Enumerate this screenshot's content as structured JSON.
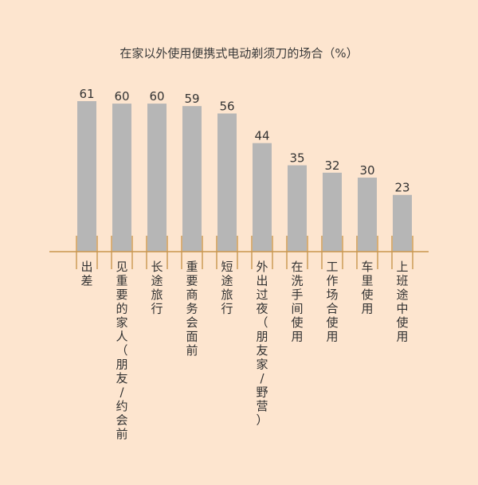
{
  "chart_data": {
    "type": "bar",
    "title": "在家以外使用便携式电动剃须刀的场合（%）",
    "categories": [
      "出差",
      "见重要的家人（朋友/约会前",
      "长途旅行",
      "重要商务会面前",
      "短途旅行",
      "外出过夜（朋友家/野营）",
      "在洗手间使用",
      "工作场合使用",
      "车里使用",
      "上班途中使用"
    ],
    "values": [
      61,
      60,
      60,
      59,
      56,
      44,
      35,
      32,
      30,
      23
    ],
    "ylim": [
      0,
      61
    ],
    "grid": false,
    "xlabel": "",
    "ylabel": ""
  },
  "colors": {
    "background": "#fde5cf",
    "bar": "#b6b6b6",
    "axis": "#c9964e",
    "text": "#333333"
  }
}
